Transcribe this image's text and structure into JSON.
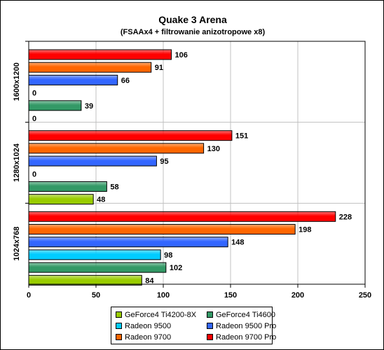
{
  "chart_data": {
    "type": "bar",
    "orientation": "horizontal",
    "title": "Quake 3 Arena",
    "subtitle": "(FSAAx4 + filtrowanie anizotropowe x8)",
    "xlim": [
      0,
      250
    ],
    "x_ticks": [
      "0",
      "50",
      "100",
      "150",
      "200",
      "250"
    ],
    "grid": "vertical",
    "legend_position": "bottom",
    "categories": [
      "1600x1200",
      "1280x1024",
      "1024x768"
    ],
    "series": [
      {
        "name": "Radeon 9700 Pro",
        "color": "#ff0000",
        "values": [
          106,
          151,
          228
        ]
      },
      {
        "name": "Radeon 9700",
        "color": "#ff6600",
        "values": [
          91,
          130,
          198
        ]
      },
      {
        "name": "Radeon 9500 Pro",
        "color": "#3366ff",
        "values": [
          66,
          95,
          148
        ]
      },
      {
        "name": "Radeon 9500",
        "color": "#00ccff",
        "values": [
          0,
          0,
          98
        ]
      },
      {
        "name": "GeForce4 Ti4600",
        "color": "#339966",
        "values": [
          39,
          58,
          102
        ]
      },
      {
        "name": "GeForce4 Ti4200-8X",
        "color": "#99cc00",
        "values": [
          0,
          48,
          84
        ]
      }
    ],
    "legend_order": [
      "GeForce4 Ti4200-8X",
      "GeForce4 Ti4600",
      "Radeon 9500",
      "Radeon 9500 Pro",
      "Radeon 9700",
      "Radeon 9700 Pro"
    ]
  }
}
